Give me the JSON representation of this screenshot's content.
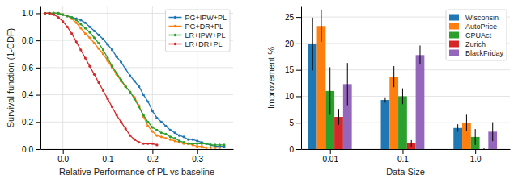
{
  "chart_data": [
    {
      "type": "line",
      "xlabel": "Relative Performance of PL vs baseline",
      "ylabel": "Survival function (1-CDF)",
      "series": [
        {
          "name": "PG+IPW+PL",
          "color": "#1f77b4",
          "marker": "circle",
          "x": [
            -0.04,
            -0.03,
            -0.02,
            -0.01,
            0.0,
            0.01,
            0.02,
            0.03,
            0.04,
            0.05,
            0.06,
            0.07,
            0.08,
            0.09,
            0.1,
            0.11,
            0.12,
            0.13,
            0.14,
            0.15,
            0.16,
            0.17,
            0.18,
            0.19,
            0.2,
            0.21,
            0.22,
            0.23,
            0.24,
            0.25,
            0.26,
            0.27,
            0.28,
            0.29,
            0.3,
            0.31,
            0.32,
            0.33,
            0.34,
            0.35,
            0.36
          ],
          "values": [
            1.0,
            1.0,
            1.0,
            1.0,
            0.99,
            0.98,
            0.97,
            0.96,
            0.95,
            0.93,
            0.9,
            0.87,
            0.84,
            0.81,
            0.77,
            0.73,
            0.68,
            0.64,
            0.59,
            0.54,
            0.5,
            0.46,
            0.4,
            0.35,
            0.28,
            0.23,
            0.2,
            0.17,
            0.14,
            0.12,
            0.1,
            0.09,
            0.07,
            0.07,
            0.06,
            0.05,
            0.04,
            0.03,
            0.02,
            0.02,
            0.02
          ]
        },
        {
          "name": "PG+DR+PL",
          "color": "#ff7f0e",
          "marker": "circle",
          "x": [
            -0.04,
            -0.03,
            -0.02,
            -0.01,
            0.0,
            0.01,
            0.02,
            0.03,
            0.04,
            0.05,
            0.06,
            0.07,
            0.08,
            0.09,
            0.1,
            0.11,
            0.12,
            0.13,
            0.14,
            0.15,
            0.16,
            0.17,
            0.18,
            0.19,
            0.2,
            0.21,
            0.22,
            0.23,
            0.24,
            0.25,
            0.26,
            0.27,
            0.28,
            0.29,
            0.3,
            0.31,
            0.32,
            0.33,
            0.34,
            0.35
          ],
          "values": [
            1.0,
            1.0,
            1.0,
            1.0,
            0.99,
            0.98,
            0.96,
            0.93,
            0.89,
            0.85,
            0.82,
            0.78,
            0.74,
            0.7,
            0.65,
            0.6,
            0.55,
            0.5,
            0.46,
            0.42,
            0.38,
            0.32,
            0.24,
            0.17,
            0.13,
            0.1,
            0.09,
            0.08,
            0.07,
            0.06,
            0.05,
            0.04,
            0.04,
            0.03,
            0.02,
            0.02,
            0.01,
            0.01,
            0.01,
            0.01
          ]
        },
        {
          "name": "LR+IPW+PL",
          "color": "#2ca02c",
          "marker": "circle",
          "x": [
            -0.04,
            -0.03,
            -0.02,
            -0.01,
            0.0,
            0.01,
            0.02,
            0.03,
            0.04,
            0.05,
            0.06,
            0.07,
            0.08,
            0.09,
            0.1,
            0.11,
            0.12,
            0.13,
            0.14,
            0.15,
            0.16,
            0.17,
            0.18,
            0.19,
            0.2,
            0.21,
            0.22,
            0.23,
            0.24,
            0.25,
            0.26,
            0.27,
            0.28,
            0.29,
            0.3,
            0.31,
            0.32,
            0.33,
            0.34,
            0.35,
            0.36
          ],
          "values": [
            1.0,
            1.0,
            1.0,
            1.0,
            0.99,
            0.98,
            0.97,
            0.95,
            0.92,
            0.89,
            0.86,
            0.82,
            0.78,
            0.73,
            0.67,
            0.61,
            0.56,
            0.51,
            0.46,
            0.42,
            0.37,
            0.31,
            0.25,
            0.2,
            0.16,
            0.14,
            0.12,
            0.11,
            0.09,
            0.08,
            0.06,
            0.05,
            0.04,
            0.04,
            0.04,
            0.04,
            0.04,
            0.03,
            0.03,
            0.03,
            0.03
          ]
        },
        {
          "name": "LR+DR+PL",
          "color": "#d62728",
          "marker": "circle",
          "x": [
            -0.04,
            -0.03,
            -0.02,
            -0.01,
            0.0,
            0.01,
            0.02,
            0.03,
            0.04,
            0.05,
            0.06,
            0.07,
            0.08,
            0.09,
            0.1,
            0.11,
            0.12,
            0.13,
            0.14,
            0.15,
            0.16,
            0.17,
            0.18,
            0.19,
            0.2,
            0.21
          ],
          "values": [
            1.0,
            1.0,
            0.99,
            0.97,
            0.94,
            0.9,
            0.85,
            0.79,
            0.73,
            0.67,
            0.61,
            0.55,
            0.49,
            0.43,
            0.37,
            0.31,
            0.25,
            0.2,
            0.15,
            0.1,
            0.07,
            0.05,
            0.04,
            0.04,
            0.04,
            0.03
          ]
        }
      ],
      "xlim": [
        -0.05,
        0.38
      ],
      "ylim": [
        0,
        1.05
      ],
      "xticks": [
        {
          "value": 0.0,
          "label": "0.0"
        },
        0.1,
        0.2,
        0.3
      ],
      "yticks": [
        {
          "value": 0.0,
          "label": "0.0"
        },
        0.2,
        0.4,
        0.6,
        0.8,
        {
          "value": 1.0,
          "label": "1.0"
        }
      ],
      "grid": true,
      "legend": "upper right"
    },
    {
      "type": "bar",
      "xlabel": "Data Size",
      "ylabel": "Improvement %",
      "log": "x",
      "x": [
        0.01,
        0.1,
        1.0
      ],
      "series": [
        {
          "name": "Wisconsin",
          "color": "#1f77b4",
          "values": [
            19.9,
            9.3,
            4.0
          ],
          "errors": [
            5.0,
            0.5,
            0.7
          ]
        },
        {
          "name": "AutoPrice",
          "color": "#ff7f0e",
          "values": [
            23.3,
            13.7,
            5.0
          ],
          "errors": [
            3.0,
            2.0,
            1.5
          ]
        },
        {
          "name": "CPUAct",
          "color": "#2ca02c",
          "values": [
            11.0,
            10.0,
            2.3
          ],
          "errors": [
            4.5,
            1.5,
            1.5
          ]
        },
        {
          "name": "Zurich",
          "color": "#d62728",
          "values": [
            6.1,
            1.1,
            0.0
          ],
          "errors": [
            1.5,
            0.6,
            0.3
          ]
        },
        {
          "name": "BlackFriday",
          "color": "#9467bd",
          "values": [
            12.3,
            17.8,
            3.3
          ],
          "errors": [
            4.0,
            1.8,
            1.8
          ]
        }
      ],
      "xlim": [
        0.004,
        3.0
      ],
      "ylim": [
        0,
        27
      ],
      "xticks": [
        0.01,
        0.1,
        {
          "value": 1.0,
          "label": "1.0"
        }
      ],
      "yticks": [
        0,
        5,
        10,
        15,
        20,
        25
      ],
      "grid": "y",
      "legend": "upper right"
    }
  ]
}
